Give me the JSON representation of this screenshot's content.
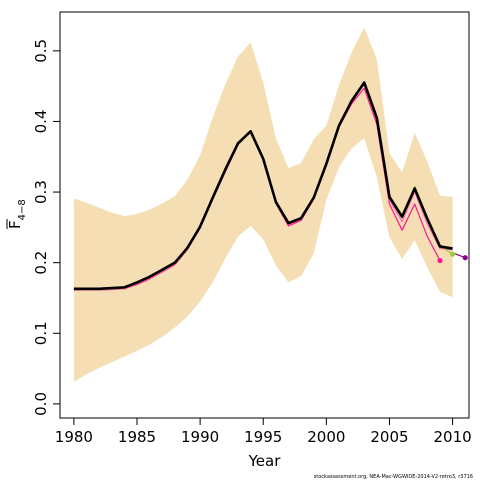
{
  "chart_data": {
    "type": "line",
    "xlabel": "Year",
    "ylabel_main": "F",
    "ylabel_sub": "4−8",
    "xlim": [
      1978.9,
      2011.3
    ],
    "ylim": [
      -0.02,
      0.555
    ],
    "xticks": [
      1980,
      1985,
      1990,
      1995,
      2000,
      2005,
      2010
    ],
    "yticks": [
      0.0,
      0.1,
      0.2,
      0.3,
      0.4,
      0.5
    ],
    "ytick_labels": [
      "0.0",
      "0.1",
      "0.2",
      "0.3",
      "0.4",
      "0.5"
    ],
    "footnote": "stockassessment.org, NEA-Mac-WGWIDE-2014-V2-retro3, r3716",
    "colors": {
      "band": "#f5deb3",
      "main": "#000000",
      "retro1": "#ff1493",
      "retro2": "#ff69b4",
      "retro3": "#9acd32",
      "retro4": "#8b008b"
    },
    "confidence_band": {
      "x": [
        1980,
        1981,
        1982,
        1983,
        1984,
        1985,
        1986,
        1987,
        1988,
        1989,
        1990,
        1991,
        1992,
        1993,
        1994,
        1995,
        1996,
        1997,
        1998,
        1999,
        2000,
        2001,
        2002,
        2003,
        2004,
        2005,
        2006,
        2007,
        2008,
        2009,
        2010
      ],
      "upper": [
        0.291,
        0.285,
        0.278,
        0.271,
        0.266,
        0.269,
        0.275,
        0.284,
        0.294,
        0.318,
        0.352,
        0.406,
        0.453,
        0.492,
        0.512,
        0.455,
        0.376,
        0.334,
        0.341,
        0.375,
        0.394,
        0.451,
        0.498,
        0.533,
        0.488,
        0.355,
        0.328,
        0.384,
        0.343,
        0.295,
        0.293
      ],
      "lower": [
        0.031,
        0.042,
        0.051,
        0.059,
        0.067,
        0.075,
        0.084,
        0.095,
        0.108,
        0.124,
        0.145,
        0.172,
        0.206,
        0.237,
        0.252,
        0.233,
        0.196,
        0.172,
        0.181,
        0.213,
        0.289,
        0.335,
        0.362,
        0.376,
        0.321,
        0.236,
        0.205,
        0.232,
        0.193,
        0.159,
        0.151
      ]
    },
    "series": [
      {
        "x": [
          1980,
          1981,
          1982,
          1983,
          1984,
          1985,
          1986,
          1987,
          1988,
          1989,
          1990,
          1991,
          1992,
          1993,
          1994,
          1995,
          1996,
          1997,
          1998,
          1999,
          2000,
          2001,
          2002,
          2003,
          2004,
          2005,
          2006,
          2007,
          2008,
          2009,
          2010
        ],
        "values": [
          0.163,
          0.163,
          0.163,
          0.164,
          0.165,
          0.172,
          0.18,
          0.19,
          0.2,
          0.221,
          0.251,
          0.292,
          0.332,
          0.369,
          0.386,
          0.347,
          0.286,
          0.256,
          0.263,
          0.292,
          0.34,
          0.394,
          0.429,
          0.455,
          0.405,
          0.293,
          0.265,
          0.305,
          0.262,
          0.223,
          0.22
        ],
        "style": "main"
      },
      {
        "x": [
          1980,
          1981,
          1982,
          1983,
          1984,
          1985,
          1986,
          1987,
          1988,
          1989,
          1990,
          1991,
          1992,
          1993,
          1994,
          1995,
          1996,
          1997,
          1998,
          1999,
          2000,
          2001,
          2002,
          2003,
          2004,
          2005,
          2006,
          2007,
          2008,
          2009
        ],
        "values": [
          0.162,
          0.162,
          0.162,
          0.162,
          0.163,
          0.169,
          0.177,
          0.187,
          0.197,
          0.219,
          0.249,
          0.29,
          0.329,
          0.367,
          0.386,
          0.347,
          0.284,
          0.252,
          0.26,
          0.29,
          0.339,
          0.392,
          0.425,
          0.447,
          0.396,
          0.283,
          0.246,
          0.283,
          0.237,
          0.203
        ],
        "style": "retro1"
      },
      {
        "x": [
          1980,
          1981,
          1982,
          1983,
          1984,
          1985,
          1986,
          1987,
          1988,
          1989,
          1990,
          1991,
          1992,
          1993,
          1994,
          1995,
          1996,
          1997,
          1998,
          1999,
          2000,
          2001,
          2002,
          2003,
          2004,
          2005,
          2006,
          2007,
          2008,
          2009,
          2010
        ],
        "values": [
          0.161,
          0.161,
          0.161,
          0.162,
          0.163,
          0.17,
          0.178,
          0.188,
          0.198,
          0.22,
          0.25,
          0.291,
          0.331,
          0.368,
          0.385,
          0.346,
          0.285,
          0.254,
          0.262,
          0.291,
          0.34,
          0.393,
          0.428,
          0.453,
          0.403,
          0.289,
          0.258,
          0.3,
          0.255,
          0.22,
          0.218
        ],
        "style": "retro2"
      },
      {
        "x": [
          1980,
          1981,
          1982,
          1983,
          1984,
          1985,
          1986,
          1987,
          1988,
          1989,
          1990,
          1991,
          1992,
          1993,
          1994,
          1995,
          1996,
          1997,
          1998,
          1999,
          2000,
          2001,
          2002,
          2003,
          2004,
          2005,
          2006,
          2007,
          2008,
          2009,
          2010
        ],
        "values": [
          0.162,
          0.162,
          0.162,
          0.163,
          0.164,
          0.171,
          0.179,
          0.189,
          0.199,
          0.221,
          0.251,
          0.292,
          0.332,
          0.369,
          0.386,
          0.347,
          0.286,
          0.256,
          0.264,
          0.293,
          0.341,
          0.395,
          0.43,
          0.456,
          0.406,
          0.295,
          0.268,
          0.308,
          0.264,
          0.224,
          0.212
        ],
        "style": "retro3"
      },
      {
        "x": [
          2010,
          2011
        ],
        "values": [
          0.214,
          0.207
        ],
        "style": "retro4"
      }
    ],
    "end_points": [
      {
        "x": 2009,
        "y": 0.203,
        "color_key": "retro1"
      },
      {
        "x": 2010,
        "y": 0.212,
        "color_key": "retro3"
      },
      {
        "x": 2011,
        "y": 0.207,
        "color_key": "retro4"
      }
    ]
  }
}
